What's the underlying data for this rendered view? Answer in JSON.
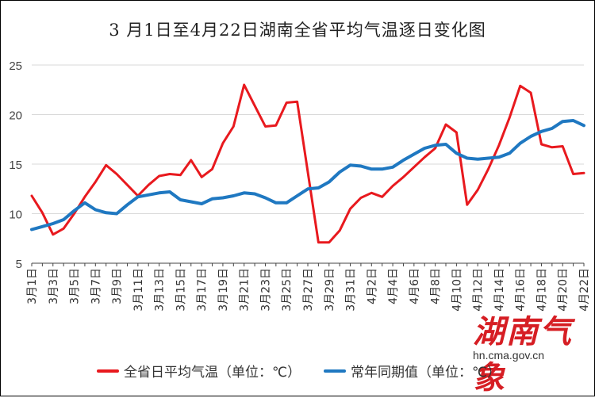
{
  "title": "3 月1日至4月22日湖南全省平均气温逐日变化图",
  "watermark": {
    "logo": "湖南气象",
    "url": "hn.cma.gov.cn"
  },
  "colors": {
    "actual": "#e8191e",
    "normal": "#1f78c1",
    "grid": "#d9d9d9",
    "axis": "#444444"
  },
  "chart_data": {
    "type": "line",
    "title": "3 月1日至4月22日湖南全省平均气温逐日变化图",
    "ylim": [
      5,
      25
    ],
    "yticks": [
      5,
      10,
      15,
      20,
      25
    ],
    "grid": true,
    "legend_position": "bottom",
    "x": [
      "3月1日",
      "3月2日",
      "3月3日",
      "3月4日",
      "3月5日",
      "3月6日",
      "3月7日",
      "3月8日",
      "3月9日",
      "3月10日",
      "3月11日",
      "3月12日",
      "3月13日",
      "3月14日",
      "3月15日",
      "3月16日",
      "3月17日",
      "3月18日",
      "3月19日",
      "3月20日",
      "3月21日",
      "3月22日",
      "3月23日",
      "3月24日",
      "3月25日",
      "3月26日",
      "3月27日",
      "3月28日",
      "3月29日",
      "3月30日",
      "3月31日",
      "4月1日",
      "4月2日",
      "4月3日",
      "4月4日",
      "4月5日",
      "4月6日",
      "4月7日",
      "4月8日",
      "4月9日",
      "4月10日",
      "4月11日",
      "4月12日",
      "4月13日",
      "4月14日",
      "4月15日",
      "4月16日",
      "4月17日",
      "4月18日",
      "4月19日",
      "4月20日",
      "4月21日",
      "4月22日"
    ],
    "xtick_labels": [
      "3月1日",
      "3月3日",
      "3月5日",
      "3月7日",
      "3月9日",
      "3月11日",
      "3月13日",
      "3月15日",
      "3月17日",
      "3月19日",
      "3月21日",
      "3月23日",
      "3月25日",
      "3月27日",
      "3月29日",
      "3月31日",
      "4月2日",
      "4月4日",
      "4月6日",
      "4月8日",
      "4月10日",
      "4月12日",
      "4月14日",
      "4月16日",
      "4月18日",
      "4月20日",
      "4月22日"
    ],
    "series": [
      {
        "name": "全省日平均气温（单位：℃）",
        "values": [
          11.8,
          10.1,
          7.9,
          8.5,
          10.0,
          11.7,
          13.2,
          14.9,
          14.0,
          12.9,
          11.8,
          12.9,
          13.8,
          14.0,
          13.9,
          15.4,
          13.7,
          14.5,
          17.1,
          18.8,
          23.0,
          20.9,
          18.8,
          18.9,
          21.2,
          21.3,
          14.2,
          7.1,
          7.1,
          8.3,
          10.5,
          11.6,
          12.1,
          11.7,
          12.8,
          13.7,
          14.7,
          15.7,
          16.6,
          19.0,
          18.2,
          10.9,
          12.4,
          14.5,
          16.9,
          19.7,
          22.9,
          22.2,
          17.0,
          16.7,
          16.8,
          14.0,
          14.1
        ]
      },
      {
        "name": "常年同期值（单位：℃）",
        "values": [
          8.4,
          8.7,
          9.0,
          9.4,
          10.3,
          11.1,
          10.4,
          10.1,
          10.0,
          10.9,
          11.7,
          11.9,
          12.1,
          12.2,
          11.4,
          11.2,
          11.0,
          11.5,
          11.6,
          11.8,
          12.1,
          12.0,
          11.6,
          11.1,
          11.1,
          11.8,
          12.5,
          12.6,
          13.2,
          14.2,
          14.9,
          14.8,
          14.5,
          14.5,
          14.7,
          15.4,
          16.0,
          16.6,
          16.9,
          17.0,
          16.1,
          15.6,
          15.5,
          15.6,
          15.7,
          16.1,
          17.1,
          17.8,
          18.3,
          18.6,
          19.3,
          19.4,
          18.9
        ]
      }
    ]
  }
}
